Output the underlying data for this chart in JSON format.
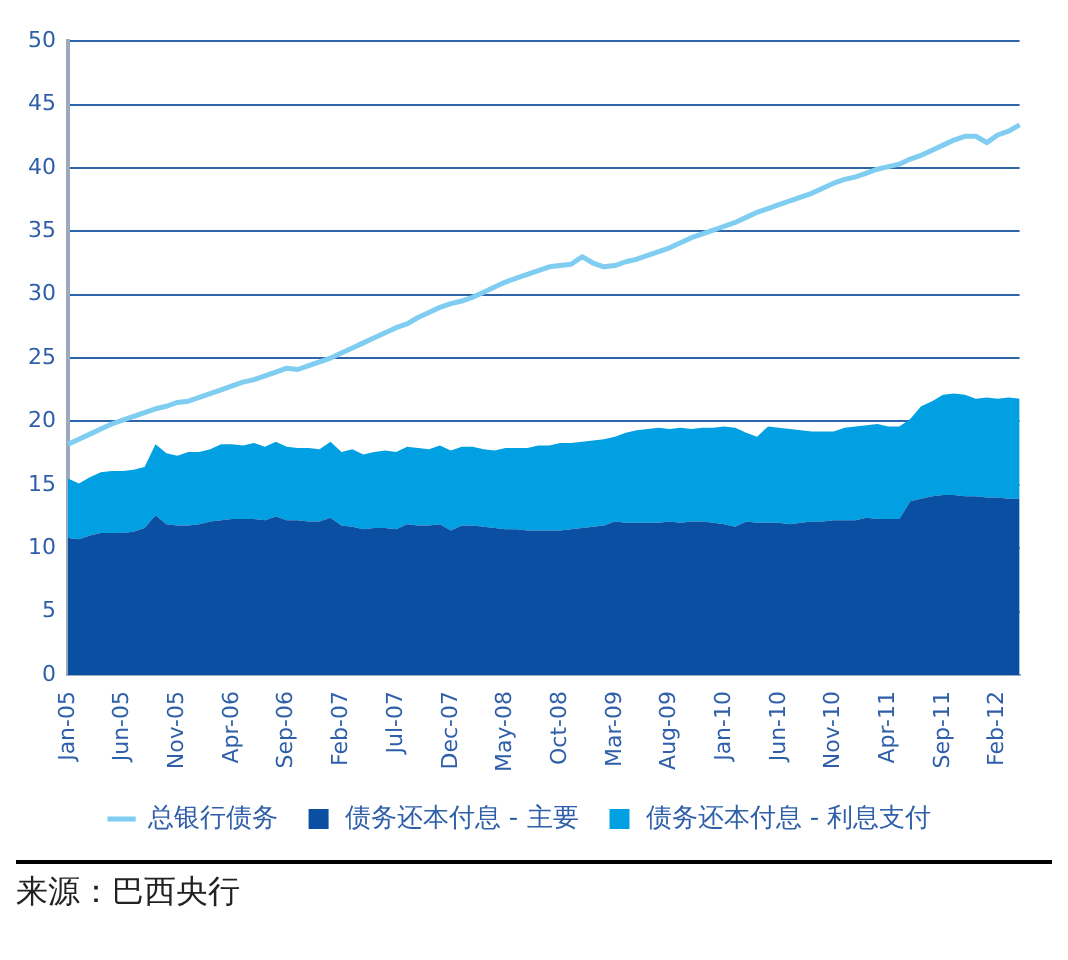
{
  "chart_data": {
    "type": "area",
    "stacked": true,
    "grid": "y",
    "legend": "bottom",
    "ylim": [
      0,
      50
    ],
    "yticks": [
      0,
      5,
      10,
      15,
      20,
      25,
      30,
      35,
      40,
      45,
      50
    ],
    "annotations": [
      "来源：巴西央行"
    ],
    "categories": [
      "Jan-05",
      null,
      null,
      null,
      null,
      "Jun-05",
      null,
      null,
      null,
      null,
      "Nov-05",
      null,
      null,
      null,
      null,
      "Apr-06",
      null,
      null,
      null,
      null,
      "Sep-06",
      null,
      null,
      null,
      null,
      "Feb-07",
      null,
      null,
      null,
      null,
      "Jul-07",
      null,
      null,
      null,
      null,
      "Dec-07",
      null,
      null,
      null,
      null,
      "May-08",
      null,
      null,
      null,
      null,
      "Oct-08",
      null,
      null,
      null,
      null,
      "Mar-09",
      null,
      null,
      null,
      null,
      "Aug-09",
      null,
      null,
      null,
      null,
      "Jan-10",
      null,
      null,
      null,
      null,
      "Jun-10",
      null,
      null,
      null,
      null,
      "Nov-10",
      null,
      null,
      null,
      null,
      "Apr-11",
      null,
      null,
      null,
      null,
      "Sep-11",
      null,
      null,
      null,
      null,
      "Feb-12",
      null,
      null
    ],
    "series": [
      {
        "name": "债务还本付息 - 主要",
        "color": "#0b4fa2",
        "values": [
          10.8,
          10.7,
          11.0,
          11.2,
          11.2,
          11.2,
          11.3,
          11.6,
          12.6,
          11.9,
          11.8,
          11.8,
          11.9,
          12.1,
          12.2,
          12.3,
          12.3,
          12.3,
          12.2,
          12.5,
          12.2,
          12.2,
          12.1,
          12.1,
          12.4,
          11.8,
          11.7,
          11.5,
          11.6,
          11.6,
          11.5,
          11.9,
          11.8,
          11.8,
          11.9,
          11.4,
          11.8,
          11.8,
          11.7,
          11.6,
          11.5,
          11.5,
          11.4,
          11.4,
          11.4,
          11.4,
          11.5,
          11.6,
          11.7,
          11.8,
          12.1,
          12.0,
          12.0,
          12.0,
          12.0,
          12.1,
          12.0,
          12.1,
          12.1,
          12.0,
          11.9,
          11.7,
          12.1,
          12.0,
          12.0,
          12.0,
          11.9,
          12.0,
          12.1,
          12.1,
          12.2,
          12.2,
          12.2,
          12.4,
          12.3,
          12.3,
          12.3,
          13.7,
          13.9,
          14.1,
          14.2,
          14.2,
          14.1,
          14.1,
          14.0,
          14.0,
          13.9,
          13.9
        ]
      },
      {
        "name": "债务还本付息 - 利息支付",
        "color": "#00a0e3",
        "values": [
          4.7,
          4.4,
          4.6,
          4.8,
          4.9,
          4.9,
          4.9,
          4.8,
          5.6,
          5.6,
          5.5,
          5.8,
          5.7,
          5.7,
          6.0,
          5.9,
          5.8,
          6.0,
          5.8,
          5.9,
          5.8,
          5.7,
          5.8,
          5.7,
          6.0,
          5.8,
          6.1,
          5.9,
          6.0,
          6.1,
          6.1,
          6.1,
          6.1,
          6.0,
          6.2,
          6.3,
          6.2,
          6.2,
          6.1,
          6.1,
          6.4,
          6.4,
          6.5,
          6.7,
          6.7,
          6.9,
          6.8,
          6.8,
          6.8,
          6.8,
          6.7,
          7.1,
          7.3,
          7.4,
          7.5,
          7.3,
          7.5,
          7.3,
          7.4,
          7.5,
          7.7,
          7.8,
          7.0,
          6.8,
          7.6,
          7.5,
          7.5,
          7.3,
          7.1,
          7.1,
          7.0,
          7.3,
          7.4,
          7.3,
          7.5,
          7.3,
          7.3,
          6.5,
          7.3,
          7.5,
          7.9,
          8.0,
          8.0,
          7.7,
          7.9,
          7.8,
          8.0,
          7.9
        ]
      },
      {
        "name": "总银行债务",
        "type": "line",
        "color": "#7fcdf0",
        "values": [
          18.2,
          18.6,
          19.0,
          19.4,
          19.8,
          20.1,
          20.4,
          20.7,
          21.0,
          21.2,
          21.5,
          21.6,
          21.9,
          22.2,
          22.5,
          22.8,
          23.1,
          23.3,
          23.6,
          23.9,
          24.2,
          24.1,
          24.4,
          24.7,
          25.0,
          25.4,
          25.8,
          26.2,
          26.6,
          27.0,
          27.4,
          27.7,
          28.2,
          28.6,
          29.0,
          29.3,
          29.5,
          29.8,
          30.2,
          30.6,
          31.0,
          31.3,
          31.6,
          31.9,
          32.2,
          32.3,
          32.4,
          33.0,
          32.5,
          32.2,
          32.3,
          32.6,
          32.8,
          33.1,
          33.4,
          33.7,
          34.1,
          34.5,
          34.8,
          35.1,
          35.4,
          35.7,
          36.1,
          36.5,
          36.8,
          37.1,
          37.4,
          37.7,
          38.0,
          38.4,
          38.8,
          39.1,
          39.3,
          39.6,
          39.9,
          40.1,
          40.3,
          40.7,
          41.0,
          41.4,
          41.8,
          42.2,
          42.5,
          42.5,
          42.0,
          42.6,
          42.9,
          43.4
        ]
      }
    ]
  }
}
